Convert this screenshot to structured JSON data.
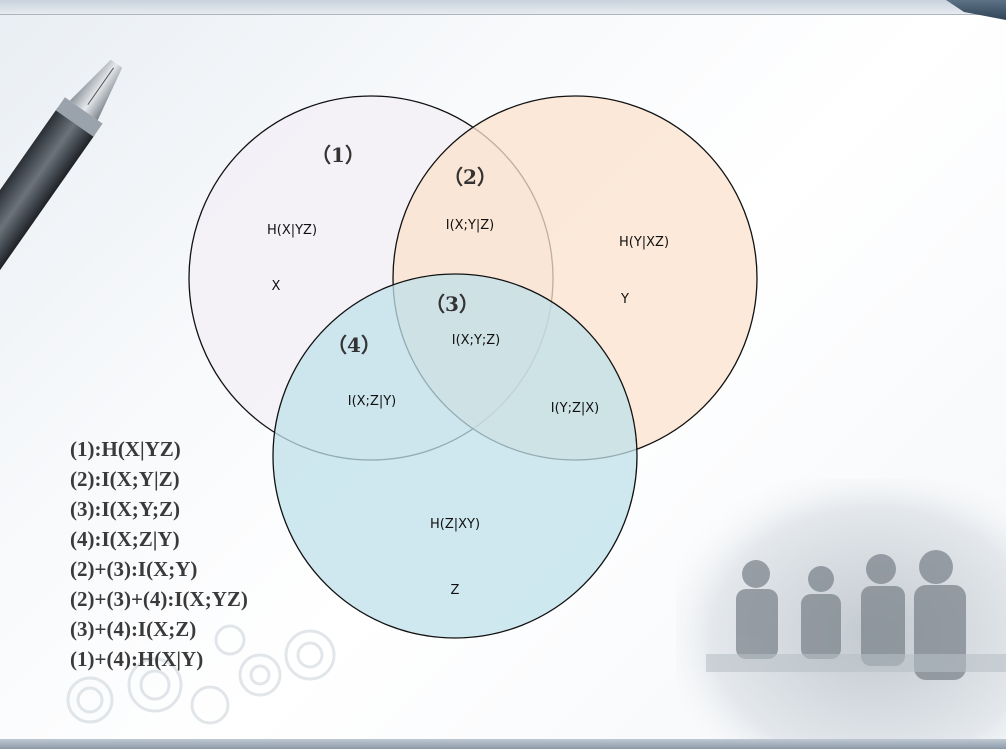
{
  "venn": {
    "region_numbers": {
      "r1": "（1）",
      "r2": "（2）",
      "r3": "（3）",
      "r4": "（4）"
    },
    "labels": {
      "hx_yz": "H(X|YZ)",
      "x": "X",
      "ixy_z": "I(X;Y|Z)",
      "hy_xz": "H(Y|XZ)",
      "y": "Y",
      "ixyz": "I(X;Y;Z)",
      "ixz_y": "I(X;Z|Y)",
      "iyz_x": "I(Y;Z|X)",
      "hz_xy": "H(Z|XY)",
      "z": "Z"
    },
    "colors": {
      "circle_x": "#f3eff5",
      "circle_y": "#fbe2cc",
      "circle_z": "#bfe0ea",
      "stroke": "#111111"
    }
  },
  "legend": [
    "(1):H(X|YZ)",
    "(2):I(X;Y|Z)",
    "(3):I(X;Y;Z)",
    "(4):I(X;Z|Y)",
    "(2)+(3):I(X;Y)",
    "(2)+(3)+(4):I(X;YZ)",
    "(3)+(4):I(X;Z)",
    "(1)+(4):H(X|Y)"
  ]
}
